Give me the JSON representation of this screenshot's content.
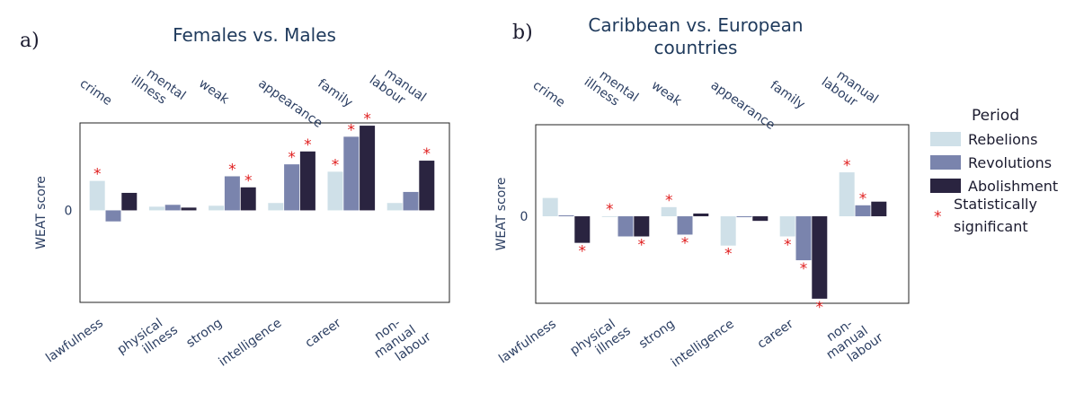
{
  "colors": {
    "Rebelions": "#cfe0e8",
    "Revolutions": "#7a84ad",
    "Abolishment": "#2a2440",
    "star": "#e01e1e",
    "text": "#2b3e62"
  },
  "legend": {
    "title": "Period",
    "entries": [
      "Rebelions",
      "Revolutions",
      "Abolishment"
    ],
    "significance_symbol": "*",
    "significance_line1": "Statistically",
    "significance_line2": "significant"
  },
  "chart_data": [
    {
      "type": "bar",
      "panel_letter": "a)",
      "title_lines": [
        "Females vs. Males"
      ],
      "xlabel": "",
      "ylabel": "WEAT score",
      "y_ticks": [
        "0"
      ],
      "ylim": [
        -1.0,
        0.95
      ],
      "top_categories": [
        [
          "crime"
        ],
        [
          "mental",
          "illness"
        ],
        [
          "weak"
        ],
        [
          "appearance"
        ],
        [
          "family"
        ],
        [
          "manual",
          "labour"
        ]
      ],
      "bottom_categories": [
        [
          "lawfulness"
        ],
        [
          "physical",
          "illness"
        ],
        [
          "strong"
        ],
        [
          "intelligence"
        ],
        [
          "career"
        ],
        [
          "non-",
          "manual",
          "labour"
        ]
      ],
      "series": [
        {
          "name": "Rebelions",
          "values": [
            0.32,
            0.04,
            0.05,
            0.08,
            0.42,
            0.08
          ],
          "significant": [
            true,
            false,
            false,
            false,
            true,
            false
          ]
        },
        {
          "name": "Revolutions",
          "values": [
            -0.12,
            0.06,
            0.37,
            0.5,
            0.8,
            0.2
          ],
          "significant": [
            false,
            false,
            true,
            true,
            true,
            false
          ]
        },
        {
          "name": "Abolishment",
          "values": [
            0.19,
            0.03,
            0.25,
            0.64,
            0.92,
            0.54
          ],
          "significant": [
            false,
            false,
            true,
            true,
            true,
            true
          ]
        }
      ]
    },
    {
      "type": "bar",
      "panel_letter": "b)",
      "title_lines": [
        "Caribbean vs. European",
        "countries"
      ],
      "xlabel": "",
      "ylabel": "WEAT score",
      "y_ticks": [
        "0"
      ],
      "ylim": [
        -0.95,
        1.0
      ],
      "top_categories": [
        [
          "crime"
        ],
        [
          "mental",
          "illness"
        ],
        [
          "weak"
        ],
        [
          "appearance"
        ],
        [
          "family"
        ],
        [
          "manual",
          "labour"
        ]
      ],
      "bottom_categories": [
        [
          "lawfulness"
        ],
        [
          "physical",
          "illness"
        ],
        [
          "strong"
        ],
        [
          "intelligence"
        ],
        [
          "career"
        ],
        [
          "non-",
          "manual",
          "labour"
        ]
      ],
      "series": [
        {
          "name": "Rebelions",
          "values": [
            0.2,
            0.0,
            0.1,
            -0.32,
            -0.22,
            0.48
          ],
          "significant": [
            false,
            true,
            true,
            true,
            true,
            true
          ]
        },
        {
          "name": "Revolutions",
          "values": [
            0.01,
            -0.22,
            -0.2,
            -0.01,
            -0.48,
            0.12
          ],
          "significant": [
            false,
            false,
            true,
            false,
            true,
            true
          ]
        },
        {
          "name": "Abolishment",
          "values": [
            -0.29,
            -0.22,
            0.03,
            -0.05,
            -0.9,
            0.16
          ],
          "significant": [
            true,
            true,
            false,
            false,
            true,
            false
          ]
        }
      ]
    }
  ]
}
